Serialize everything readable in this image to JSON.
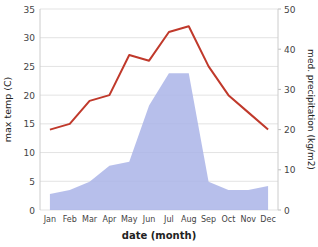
{
  "chart_data": {
    "type": "line",
    "categories": [
      "Jan",
      "Feb",
      "Mar",
      "Apr",
      "May",
      "Jun",
      "Jul",
      "Aug",
      "Sep",
      "Oct",
      "Nov",
      "Dec"
    ],
    "xlabel": "date (month)",
    "ylabel": "max temp (C)",
    "y2label": "med. precipitation (kg/m2)",
    "ylim": [
      0,
      35
    ],
    "yticks": [
      0,
      5,
      10,
      15,
      20,
      25,
      30,
      35
    ],
    "y2lim": [
      0,
      50
    ],
    "y2ticks": [
      0,
      10,
      20,
      30,
      40,
      50
    ],
    "grid": true,
    "series": [
      {
        "type": "line",
        "color": "#c0392b",
        "values": [
          14,
          15,
          19,
          20,
          27,
          26,
          31,
          32,
          25,
          20,
          17,
          14
        ]
      },
      {
        "type": "area",
        "color": "#aab4e8",
        "axis": "y2",
        "values": [
          4,
          5,
          7,
          11,
          12,
          26,
          34,
          34,
          7,
          5,
          5,
          6
        ]
      }
    ]
  }
}
